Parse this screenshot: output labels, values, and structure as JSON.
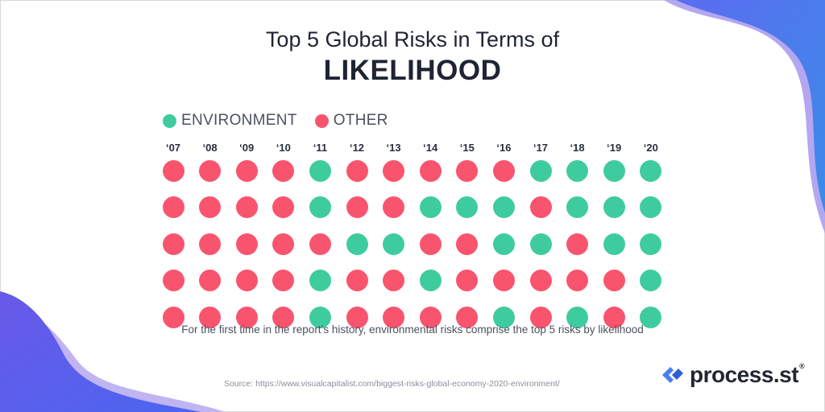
{
  "title_line1": "Top 5 Global Risks in Terms of",
  "title_line2": "LIKELIHOOD",
  "legend": [
    {
      "label": "ENVIRONMENT",
      "color": "#3ecc9f"
    },
    {
      "label": "OTHER",
      "color": "#f9546e"
    }
  ],
  "caption": "For the first time in the report’s history, environmental risks comprise the top 5 risks by likelihood",
  "source": "Source: https://www.visualcapitalist.com/biggest-risks-global-economy-2020-environment/",
  "logo": {
    "text": "process.st",
    "reg": "®"
  },
  "chart_data": {
    "type": "table",
    "categories": [
      "‘07",
      "‘08",
      "‘09",
      "‘10",
      "‘11",
      "‘12",
      "‘13",
      "‘14",
      "‘15",
      "‘16",
      "‘17",
      "‘18",
      "‘19",
      "‘20"
    ],
    "series": [
      {
        "name": "ENVIRONMENT",
        "color": "#3ecc9f"
      },
      {
        "name": "OTHER",
        "color": "#f9546e"
      }
    ],
    "rows": [
      [
        "OTHER",
        "OTHER",
        "OTHER",
        "OTHER",
        "ENVIRONMENT",
        "OTHER",
        "OTHER",
        "OTHER",
        "OTHER",
        "OTHER",
        "ENVIRONMENT",
        "ENVIRONMENT",
        "ENVIRONMENT",
        "ENVIRONMENT"
      ],
      [
        "OTHER",
        "OTHER",
        "OTHER",
        "OTHER",
        "ENVIRONMENT",
        "OTHER",
        "OTHER",
        "ENVIRONMENT",
        "ENVIRONMENT",
        "ENVIRONMENT",
        "OTHER",
        "ENVIRONMENT",
        "ENVIRONMENT",
        "ENVIRONMENT"
      ],
      [
        "OTHER",
        "OTHER",
        "OTHER",
        "OTHER",
        "OTHER",
        "ENVIRONMENT",
        "ENVIRONMENT",
        "OTHER",
        "OTHER",
        "ENVIRONMENT",
        "ENVIRONMENT",
        "OTHER",
        "ENVIRONMENT",
        "ENVIRONMENT"
      ],
      [
        "OTHER",
        "OTHER",
        "OTHER",
        "OTHER",
        "ENVIRONMENT",
        "OTHER",
        "OTHER",
        "ENVIRONMENT",
        "OTHER",
        "OTHER",
        "OTHER",
        "OTHER",
        "OTHER",
        "ENVIRONMENT"
      ],
      [
        "OTHER",
        "OTHER",
        "OTHER",
        "OTHER",
        "ENVIRONMENT",
        "OTHER",
        "OTHER",
        "OTHER",
        "OTHER",
        "ENVIRONMENT",
        "OTHER",
        "ENVIRONMENT",
        "OTHER",
        "ENVIRONMENT"
      ]
    ]
  }
}
